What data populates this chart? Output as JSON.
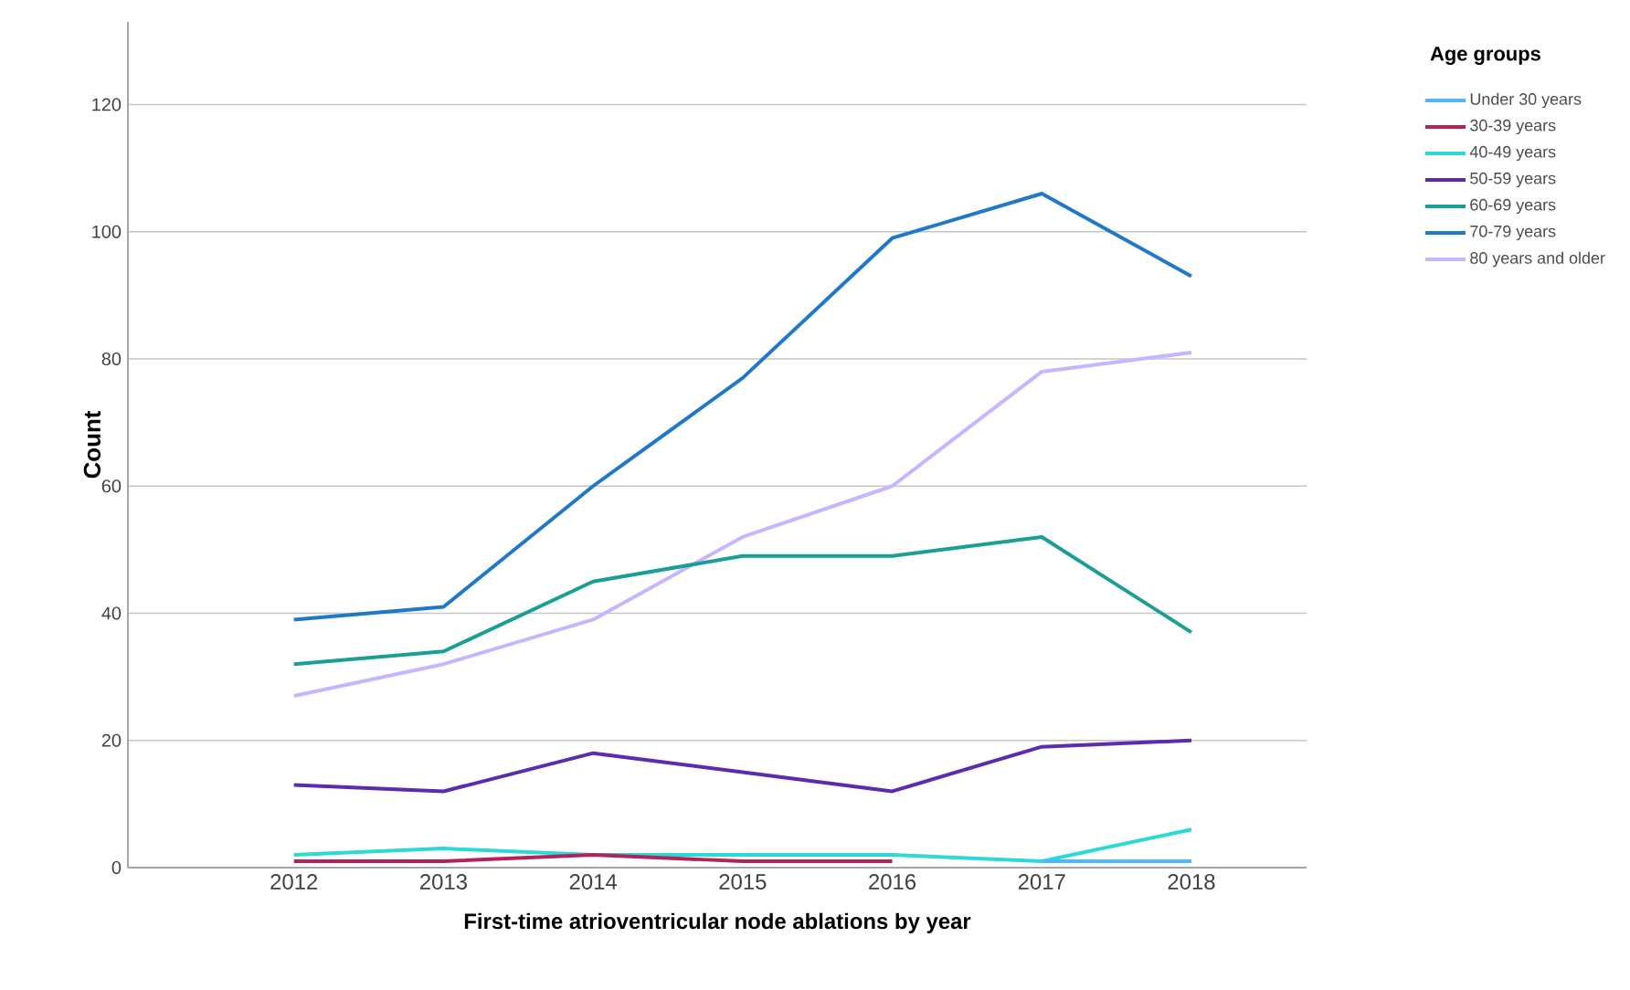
{
  "chart_data": {
    "type": "line",
    "xlabel": "First-time atrioventricular node ablations by year",
    "ylabel": "Count",
    "legend_title": "Age groups",
    "categories": [
      "2012",
      "2013",
      "2014",
      "2015",
      "2016",
      "2017",
      "2018"
    ],
    "ylim": [
      0,
      133
    ],
    "yticks": [
      0,
      20,
      40,
      60,
      80,
      100,
      120
    ],
    "grid": "y",
    "legend": "top right",
    "marker": "none",
    "series": [
      {
        "name": "Under 30 years",
        "color": "#4db8ff",
        "values": [
          null,
          null,
          null,
          null,
          null,
          1,
          1
        ]
      },
      {
        "name": "30-39 years",
        "color": "#b0245a",
        "values": [
          1,
          1,
          2,
          1,
          1,
          null,
          null
        ]
      },
      {
        "name": "40-49 years",
        "color": "#2bd9d6",
        "values": [
          2,
          3,
          2,
          2,
          2,
          1,
          6
        ]
      },
      {
        "name": "50-59 years",
        "color": "#5b2bb0",
        "values": [
          13,
          12,
          18,
          15,
          12,
          19,
          20
        ]
      },
      {
        "name": "60-69 years",
        "color": "#1a9e96",
        "values": [
          32,
          34,
          45,
          49,
          49,
          52,
          37
        ]
      },
      {
        "name": "70-79 years",
        "color": "#1f78c8",
        "values": [
          39,
          41,
          60,
          77,
          99,
          106,
          93
        ]
      },
      {
        "name": "80 years and older",
        "color": "#c8b4ff",
        "values": [
          27,
          32,
          39,
          52,
          60,
          78,
          81
        ]
      }
    ]
  }
}
